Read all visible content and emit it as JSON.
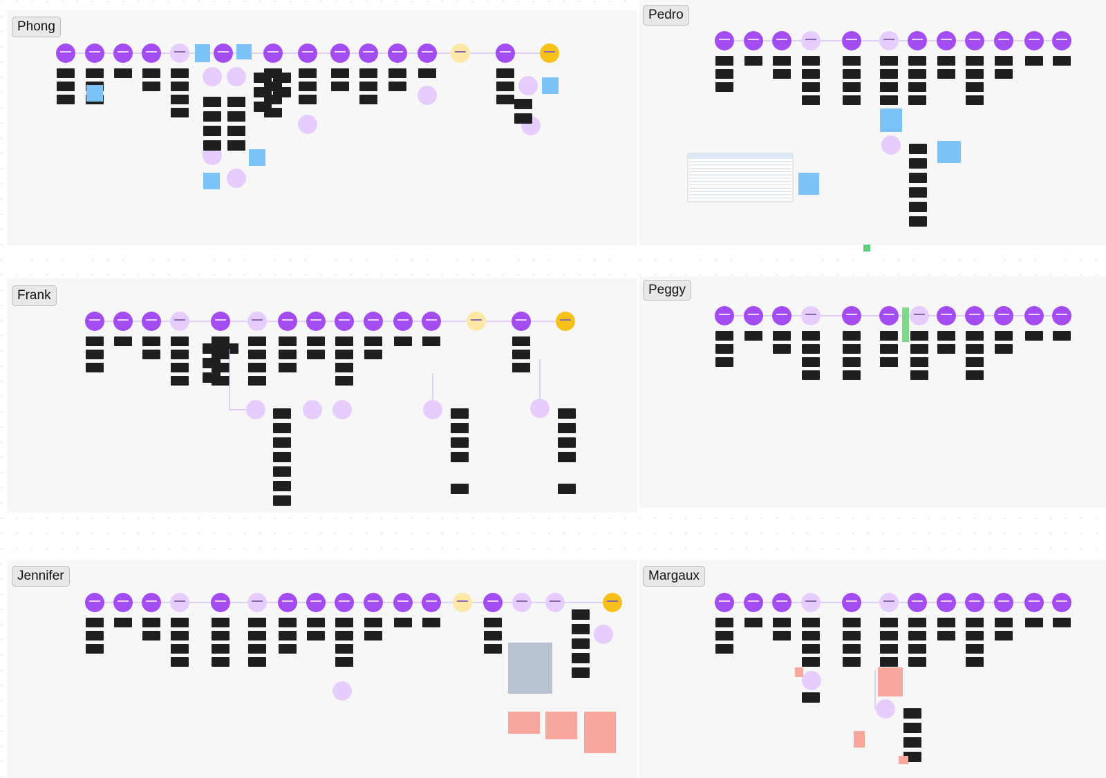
{
  "panels": [
    {
      "name": "Phong"
    },
    {
      "name": "Pedro"
    },
    {
      "name": "Frank"
    },
    {
      "name": "Peggy"
    },
    {
      "name": "Jennifer"
    },
    {
      "name": "Margaux"
    }
  ]
}
